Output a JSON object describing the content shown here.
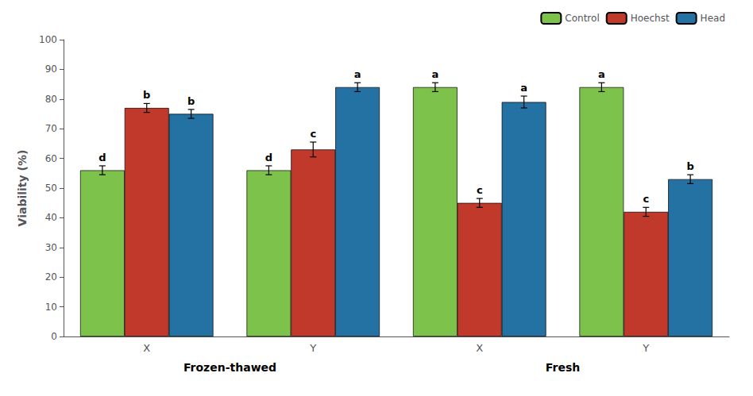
{
  "chart_data": {
    "type": "bar",
    "categories": [
      "X",
      "Y",
      "X",
      "Y"
    ],
    "series": [
      {
        "name": "Control",
        "color": "#7DC24B",
        "values": [
          56.0,
          56.0,
          84.0,
          84.0
        ],
        "errors": [
          1.5,
          1.5,
          1.5,
          1.5
        ],
        "letters": [
          "d",
          "d",
          "a",
          "a"
        ]
      },
      {
        "name": "Hoechst",
        "color": "#C0392B",
        "values": [
          77.0,
          63.0,
          45.0,
          42.0
        ],
        "errors": [
          1.5,
          2.5,
          1.5,
          1.5
        ],
        "letters": [
          "b",
          "c",
          "c",
          "c"
        ]
      },
      {
        "name": "Head",
        "color": "#2471A3",
        "values": [
          75.0,
          84.0,
          79.0,
          53.0
        ],
        "errors": [
          1.5,
          1.5,
          2.0,
          1.5
        ],
        "letters": [
          "b",
          "a",
          "a",
          "b"
        ]
      }
    ],
    "ylabel": "Viability (%)",
    "ylim": [
      0,
      100
    ],
    "yticks": [
      0,
      10,
      20,
      30,
      40,
      50,
      60,
      70,
      80,
      90,
      100
    ],
    "grid": false,
    "legend": "upper right",
    "annotations": [
      {
        "text": "Frozen-thawed",
        "categories": [
          0,
          1
        ]
      },
      {
        "text": "Fresh",
        "categories": [
          2,
          3
        ]
      }
    ]
  }
}
